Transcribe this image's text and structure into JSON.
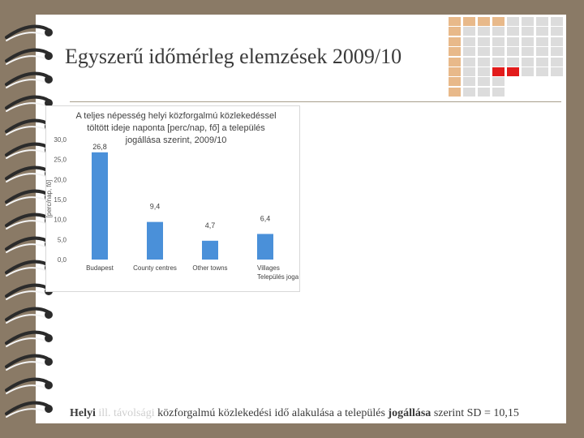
{
  "slide": {
    "title_main": "Egyszerű időmérleg elemzések",
    "title_year": "2009/10",
    "caption": {
      "part1": "Helyi",
      "part2": "ill. távolsági",
      "part3": "közforgalmú közlekedési idő alakulása a település",
      "part4": "jogállása",
      "part5": "szerint SD = 10,15"
    }
  },
  "decor": {
    "grid_color_base": "#dcdcdc",
    "grid_color_accent": "#e8b98a",
    "grid_color_red": "#e21b1b"
  },
  "chart_data": {
    "type": "bar",
    "title": "A teljes népesség helyi közforgalmú közlekedéssel töltött ideje naponta [perc/nap, fő] a település jogállása szerint, 2009/10",
    "ylabel": "[perc/nap, fő]",
    "categories": [
      "Budapest",
      "County centres",
      "Other towns",
      "Villages\nTelepülés joga"
    ],
    "values": [
      26.8,
      9.4,
      4.7,
      6.4
    ],
    "value_labels": [
      "26,8",
      "9,4",
      "4,7",
      "6,4"
    ],
    "yticks": [
      "0,0",
      "5,0",
      "10,0",
      "15,0",
      "20,0",
      "25,0",
      "30,0"
    ],
    "ylim": [
      0,
      30
    ],
    "bar_color": "#4a90d9",
    "grid": false
  }
}
